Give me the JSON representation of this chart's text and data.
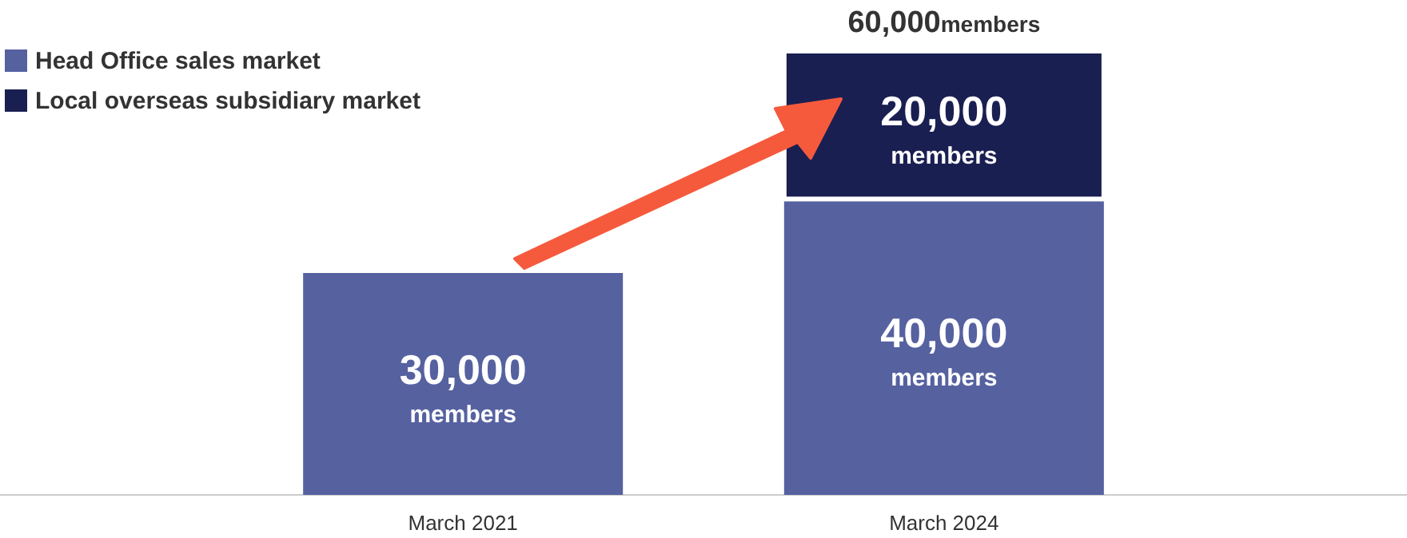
{
  "chart_data": {
    "type": "bar",
    "stacked": true,
    "categories": [
      "March 2021",
      "March 2024"
    ],
    "series": [
      {
        "name": "Head Office sales market",
        "color": "#5661a0",
        "values": [
          30000,
          40000
        ],
        "value_labels": [
          "30,000 members",
          "40,000 members"
        ]
      },
      {
        "name": "Local overseas subsidiary market",
        "color": "#1a1f52",
        "values": [
          null,
          20000
        ],
        "value_labels": [
          null,
          "20,000 members"
        ]
      }
    ],
    "totals": [
      null,
      "60,000members"
    ],
    "legend": "top left"
  }
}
